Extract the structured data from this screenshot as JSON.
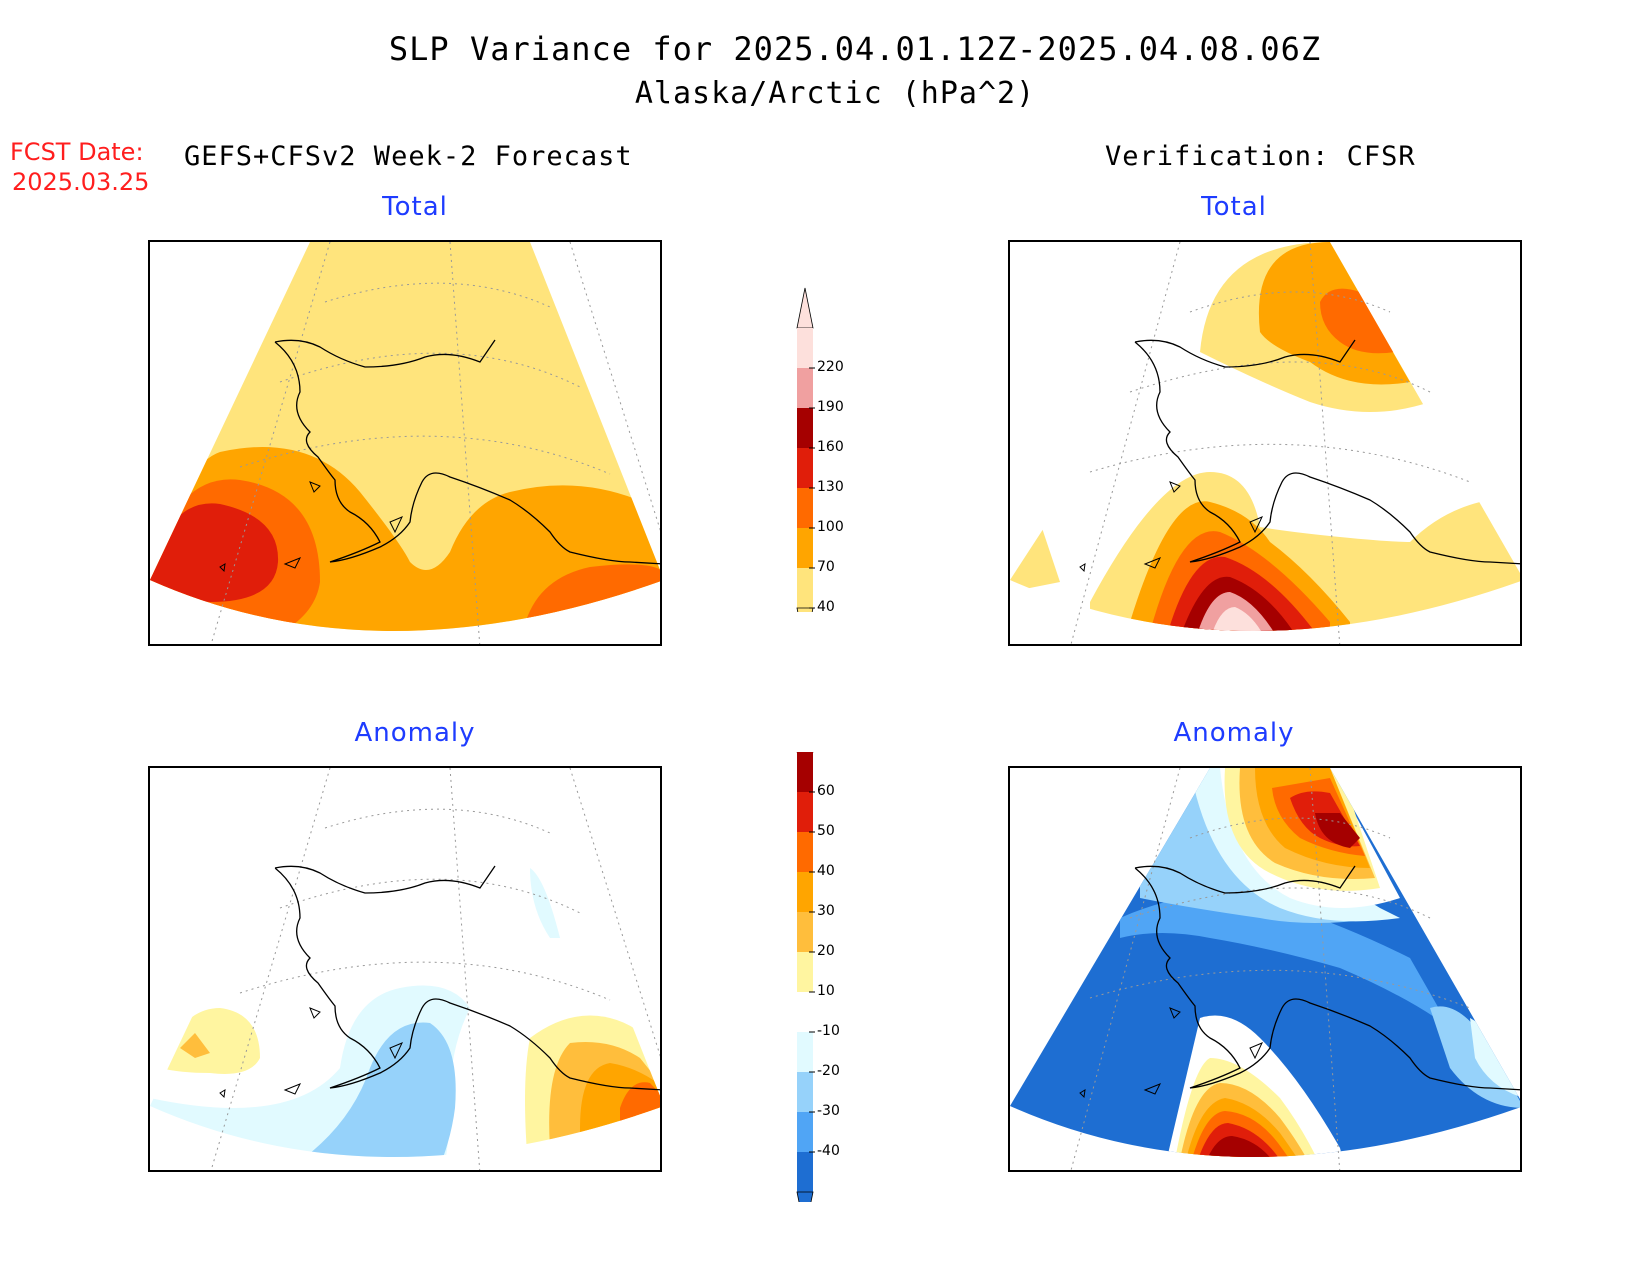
{
  "header": {
    "title": "SLP Variance for 2025.04.01.12Z-2025.04.08.06Z",
    "subtitle": "Alaska/Arctic (hPa^2)",
    "fcst_label": "FCST Date:",
    "fcst_date": "2025.03.25",
    "left_column": "GEFS+CFSv2 Week-2 Forecast",
    "right_column": "Verification: CFSR"
  },
  "panels": {
    "forecast_total": {
      "title": "Total"
    },
    "verification_total": {
      "title": "Total"
    },
    "forecast_anomaly": {
      "title": "Anomaly"
    },
    "verification_anomaly": {
      "title": "Anomaly"
    }
  },
  "colorbars": {
    "total": {
      "labels": [
        "220",
        "190",
        "160",
        "130",
        "100",
        "70",
        "40"
      ],
      "colors": [
        "#fde0dc",
        "#f0a0a0",
        "#a50000",
        "#e01e0a",
        "#ff6a00",
        "#ffa500",
        "#ffe47c"
      ]
    },
    "anomaly": {
      "labels": [
        "60",
        "50",
        "40",
        "30",
        "20",
        "10",
        "-10",
        "-20",
        "-30",
        "-40"
      ],
      "colors": [
        "#a50000",
        "#e01e0a",
        "#ff6a00",
        "#ffa500",
        "#ffbe3c",
        "#fff5a0",
        "#ffffff",
        "#e1faff",
        "#96d2fa",
        "#50a5f5",
        "#1e6ed2"
      ]
    }
  }
}
